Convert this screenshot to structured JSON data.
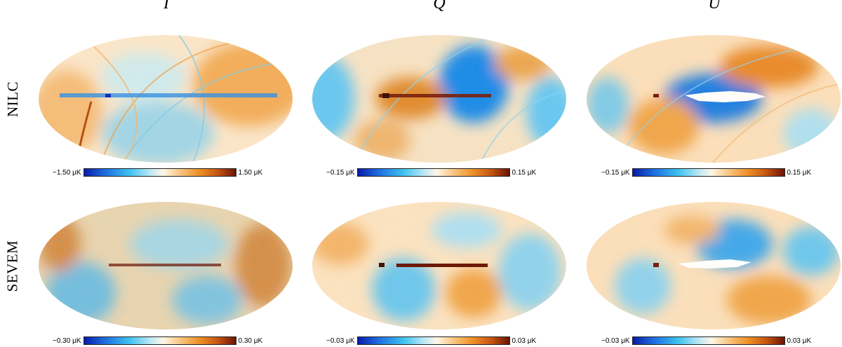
{
  "columns": [
    "I",
    "Q",
    "U"
  ],
  "rows": [
    "NILC",
    "SEVEM"
  ],
  "colorbars": {
    "nilc": [
      {
        "min": "−1.50 μK",
        "max": "1.50 μK"
      },
      {
        "min": "−0.15 μK",
        "max": "0.15 μK"
      },
      {
        "min": "−0.15 μK",
        "max": "0.15 μK"
      }
    ],
    "sevem": [
      {
        "min": "−0.30 μK",
        "max": "0.30 μK"
      },
      {
        "min": "−0.03 μK",
        "max": "0.03 μK"
      },
      {
        "min": "−0.03 μK",
        "max": "0.03 μK"
      }
    ]
  },
  "colors": {
    "scale": [
      "#0a1ba8",
      "#1e6fe0",
      "#3fc2f0",
      "#bfe9f6",
      "#fff6e6",
      "#f7c27a",
      "#ee9026",
      "#c65512",
      "#6a1404"
    ],
    "map_base": "#fbe7cc",
    "mask": "#ffffff"
  }
}
